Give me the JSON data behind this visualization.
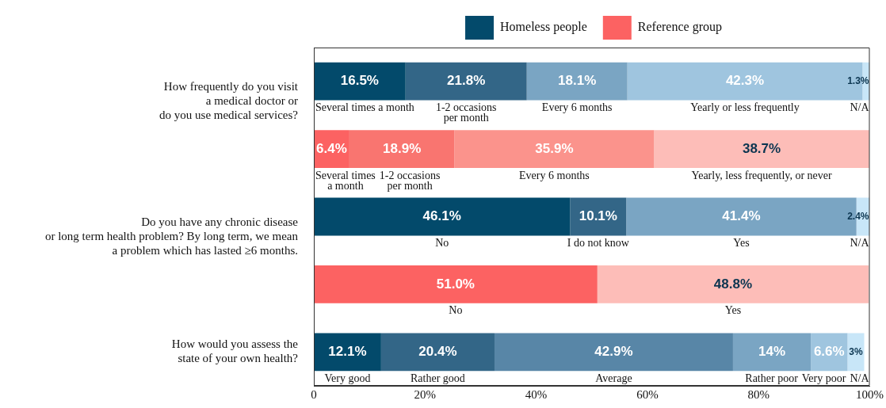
{
  "chart_data": {
    "type": "bar",
    "orientation": "horizontal",
    "stacked": true,
    "legend": "top",
    "categories": [
      "How frequently do you visit\na medical doctor or\ndo you use medical services?",
      null,
      "Do you have any chronic disease\nor long term health problem? By long term, we mean\na problem which has lasted ≥6 months.",
      null,
      "How would you assess the\nstate of your own health?"
    ],
    "xlim": [
      0,
      100
    ],
    "xticks": [
      0,
      {
        "value": 20,
        "label": "20%"
      },
      {
        "value": 40,
        "label": "40%"
      },
      {
        "value": 60,
        "label": "60%"
      },
      {
        "value": 80,
        "label": "80%"
      },
      {
        "value": 100,
        "label": "100%"
      }
    ],
    "grid": false,
    "series": [
      {
        "name": "Several times a month",
        "color": "#034a6b",
        "values": [
          16.5,
          null,
          null,
          null,
          null
        ],
        "value_labels": [
          "16.5%",
          null,
          null,
          null,
          null
        ]
      },
      {
        "name": "1-2 occasions\nper month",
        "color": "#336687",
        "values": [
          21.8,
          null,
          null,
          null,
          null
        ],
        "value_labels": [
          "21.8%",
          null,
          null,
          null,
          null
        ]
      },
      {
        "name": "Every 6 months",
        "color": "#7aa5c3",
        "values": [
          18.1,
          null,
          null,
          null,
          null
        ],
        "value_labels": [
          "18.1%",
          null,
          null,
          null,
          null
        ]
      },
      {
        "name": "Yearly or less frequently",
        "color": "#9fc5df",
        "values": [
          42.3,
          null,
          null,
          null,
          null
        ],
        "value_labels": [
          "42.3%",
          null,
          null,
          null,
          null
        ]
      },
      {
        "name": "N/A",
        "color": "#c8e6f8",
        "values": [
          1.3,
          null,
          null,
          null,
          null
        ],
        "value_labels": [
          "1.3%",
          null,
          null,
          null,
          null
        ]
      },
      {
        "name": "Several times\na month",
        "color": "#fc6262",
        "values": [
          null,
          6.4,
          null,
          null,
          null
        ],
        "value_labels": [
          null,
          "6.4%",
          null,
          null,
          null
        ]
      },
      {
        "name": "1-2 occasions\nper month",
        "color": "#f97570",
        "values": [
          null,
          18.9,
          null,
          null,
          null
        ],
        "value_labels": [
          null,
          "18.9%",
          null,
          null,
          null
        ]
      },
      {
        "name": "Every 6 months",
        "color": "#fb938c",
        "values": [
          null,
          35.9,
          null,
          null,
          null
        ],
        "value_labels": [
          null,
          "35.9%",
          null,
          null,
          null
        ]
      },
      {
        "name": "Yearly, less frequently, or never",
        "color": "#fdbdb8",
        "values": [
          null,
          38.7,
          null,
          null,
          null
        ],
        "value_labels": [
          null,
          "38.7%",
          null,
          null,
          null
        ]
      },
      {
        "name": "No",
        "color": "#034a6b",
        "values": [
          null,
          null,
          46.1,
          null,
          null
        ],
        "value_labels": [
          null,
          null,
          "46.1%",
          null,
          null
        ]
      },
      {
        "name": "I do not know",
        "color": "#336687",
        "values": [
          null,
          null,
          10.1,
          null,
          null
        ],
        "value_labels": [
          null,
          null,
          "10.1%",
          null,
          null
        ]
      },
      {
        "name": "Yes",
        "color": "#7aa5c3",
        "values": [
          null,
          null,
          41.4,
          null,
          null
        ],
        "value_labels": [
          null,
          null,
          "41.4%",
          null,
          null
        ]
      },
      {
        "name": "N/A",
        "color": "#c8e6f8",
        "values": [
          null,
          null,
          2.4,
          null,
          null
        ],
        "value_labels": [
          null,
          null,
          "2.4%",
          null,
          null
        ]
      },
      {
        "name": "No",
        "color": "#fc6262",
        "values": [
          null,
          null,
          null,
          51.0,
          null
        ],
        "value_labels": [
          null,
          null,
          null,
          "51.0%",
          null
        ]
      },
      {
        "name": "Yes",
        "color": "#fdbdb8",
        "values": [
          null,
          null,
          null,
          48.8,
          null
        ],
        "value_labels": [
          null,
          null,
          null,
          "48.8%",
          null
        ]
      },
      {
        "name": "Very good",
        "color": "#034a6b",
        "values": [
          null,
          null,
          null,
          null,
          12.1
        ],
        "value_labels": [
          null,
          null,
          null,
          null,
          "12.1%"
        ]
      },
      {
        "name": "Rather good",
        "color": "#336687",
        "values": [
          null,
          null,
          null,
          null,
          20.4
        ],
        "value_labels": [
          null,
          null,
          null,
          null,
          "20.4%"
        ]
      },
      {
        "name": "Average",
        "color": "#5886a7",
        "values": [
          null,
          null,
          null,
          null,
          42.9
        ],
        "value_labels": [
          null,
          null,
          null,
          null,
          "42.9%"
        ]
      },
      {
        "name": "Rather poor",
        "color": "#7aa5c3",
        "values": [
          null,
          null,
          null,
          null,
          14
        ],
        "value_labels": [
          null,
          null,
          null,
          null,
          "14%"
        ]
      },
      {
        "name": "Very poor",
        "color": "#9fc5df",
        "values": [
          null,
          null,
          null,
          null,
          6.6
        ],
        "value_labels": [
          null,
          null,
          null,
          null,
          "6.6%"
        ]
      },
      {
        "name": "N/A",
        "color": "#c8e6f8",
        "values": [
          null,
          null,
          null,
          null,
          3
        ],
        "value_labels": [
          null,
          null,
          null,
          null,
          "3%"
        ]
      },
      {
        "name": "Homeless people",
        "color": "#034a6b",
        "values": [
          null,
          null,
          null,
          null,
          null
        ]
      },
      {
        "name": "Reference group",
        "color": "#fc6262",
        "values": [
          null,
          null,
          null,
          null,
          null
        ]
      }
    ]
  }
}
